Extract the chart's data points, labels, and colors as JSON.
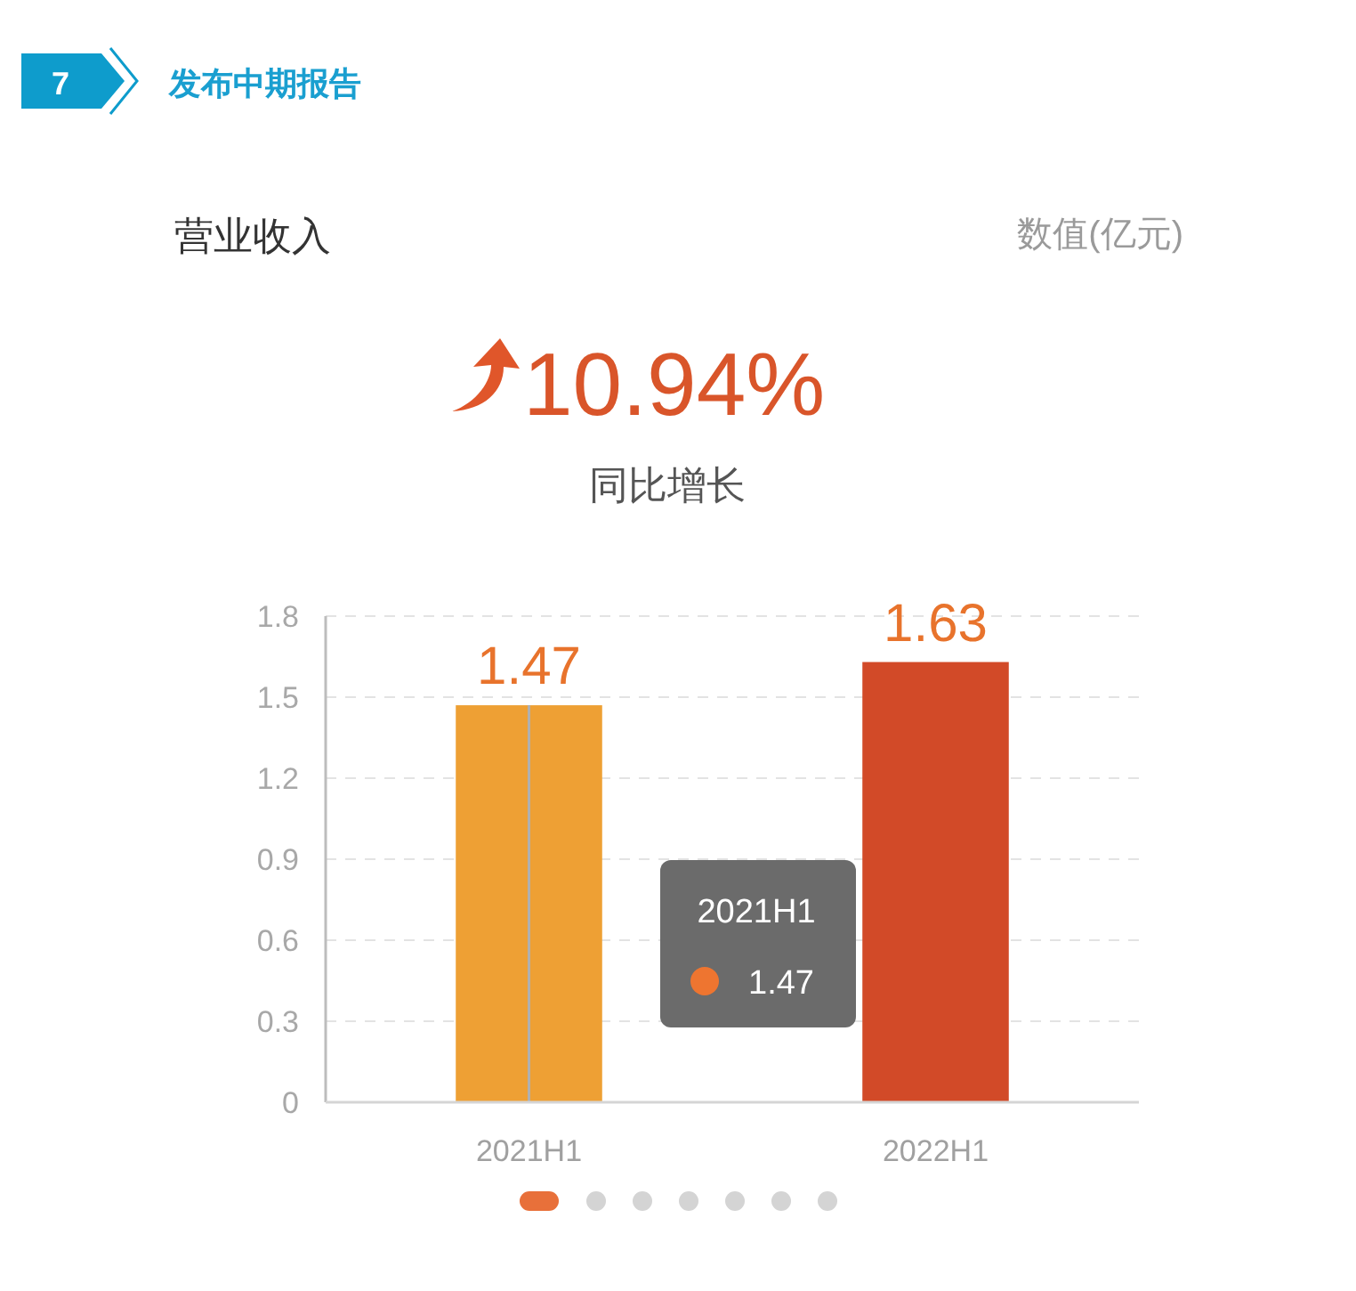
{
  "chart_data": {
    "type": "bar",
    "title": "营业收入",
    "categories": [
      "2021H1",
      "2022H1"
    ],
    "values": [
      1.47,
      1.63
    ],
    "colors": [
      "#eea034",
      "#d24a28"
    ],
    "ylim": [
      0,
      1.8
    ],
    "yticks": [
      0,
      0.3,
      0.6,
      0.9,
      1.2,
      1.5,
      1.8
    ],
    "grid": "y",
    "data_labels": true,
    "ref_lines": [
      {
        "axis": "x",
        "value": "2021H1",
        "color": "#b0b0b0"
      }
    ],
    "annotations": [
      "7",
      "发布中期报告",
      "数值(亿元)",
      "10.94%",
      "同比增长",
      "2021H1",
      "1.47"
    ]
  }
}
